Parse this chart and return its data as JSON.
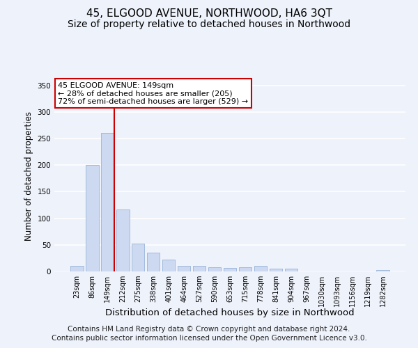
{
  "title": "45, ELGOOD AVENUE, NORTHWOOD, HA6 3QT",
  "subtitle": "Size of property relative to detached houses in Northwood",
  "xlabel": "Distribution of detached houses by size in Northwood",
  "ylabel": "Number of detached properties",
  "categories": [
    "23sqm",
    "86sqm",
    "149sqm",
    "212sqm",
    "275sqm",
    "338sqm",
    "401sqm",
    "464sqm",
    "527sqm",
    "590sqm",
    "653sqm",
    "715sqm",
    "778sqm",
    "841sqm",
    "904sqm",
    "967sqm",
    "1030sqm",
    "1093sqm",
    "1156sqm",
    "1219sqm",
    "1282sqm"
  ],
  "values": [
    10,
    200,
    260,
    117,
    53,
    35,
    22,
    10,
    10,
    8,
    7,
    8,
    10,
    5,
    5,
    0,
    0,
    0,
    0,
    0,
    3
  ],
  "bar_color": "#ccd9f0",
  "bar_edge_color": "#99b3d9",
  "vline_x_index": 2,
  "vline_color": "#cc0000",
  "annotation_text": "45 ELGOOD AVENUE: 149sqm\n← 28% of detached houses are smaller (205)\n72% of semi-detached houses are larger (529) →",
  "annotation_box_color": "#ffffff",
  "annotation_box_edge_color": "#cc0000",
  "ylim": [
    0,
    360
  ],
  "yticks": [
    0,
    50,
    100,
    150,
    200,
    250,
    300,
    350
  ],
  "footer_line1": "Contains HM Land Registry data © Crown copyright and database right 2024.",
  "footer_line2": "Contains public sector information licensed under the Open Government Licence v3.0.",
  "background_color": "#eef2fb",
  "grid_color": "#ffffff",
  "title_fontsize": 11,
  "subtitle_fontsize": 10,
  "xlabel_fontsize": 9.5,
  "ylabel_fontsize": 8.5,
  "footer_fontsize": 7.5,
  "tick_fontsize": 7
}
